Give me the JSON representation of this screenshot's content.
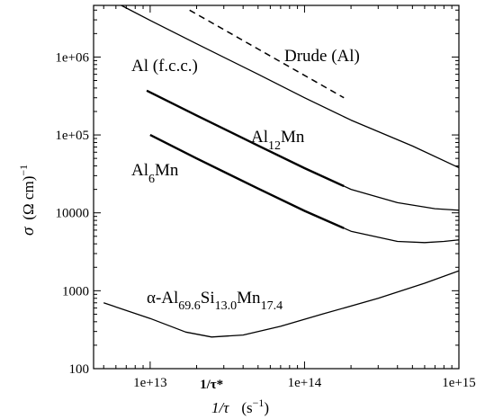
{
  "chart_data": {
    "type": "line",
    "x_scale": "log",
    "y_scale": "log",
    "xlim": [
      4300000000000.0,
      1000000000000000.0
    ],
    "ylim": [
      100,
      4600000
    ],
    "x_ticks": [
      {
        "value": 10000000000000.0,
        "label": "1e+13"
      },
      {
        "value": 100000000000000.0,
        "label": "1e+14"
      },
      {
        "value": 1000000000000000.0,
        "label": "1e+15"
      }
    ],
    "y_ticks": [
      {
        "value": 100,
        "label": "100"
      },
      {
        "value": 1000,
        "label": "1000"
      },
      {
        "value": 10000,
        "label": "10000"
      },
      {
        "value": 100000,
        "label": "1e+05"
      },
      {
        "value": 1000000,
        "label": "1e+06"
      }
    ],
    "special_tick": {
      "value": 25000000000000.0,
      "label": "1/τ*"
    },
    "xlabel": {
      "var": "1/τ",
      "unit": "(s",
      "exp": "−1",
      "close": ")"
    },
    "ylabel": {
      "var": "σ",
      "unit": "(Ω cm)",
      "exp": "−1"
    },
    "curve_labels": {
      "al_fcc": "Al (f.c.c.)",
      "drude": "Drude (Al)",
      "al12mn_base": "Al",
      "al12mn_sub": "12",
      "al12mn_tail": "Mn",
      "al6mn_base": "Al",
      "al6mn_sub": "6",
      "al6mn_tail": "Mn",
      "alpha_pre": "α-Al",
      "alpha_sub1": "69.6",
      "alpha_si": "Si",
      "alpha_sub2": "13.0",
      "alpha_mn": "Mn",
      "alpha_sub3": "17.4"
    },
    "series": [
      {
        "key": "al_fcc",
        "style": "solid",
        "width": 1.3,
        "x": [
          6500000000000.0,
          10000000000000.0,
          20000000000000.0,
          50000000000000.0,
          100000000000000.0,
          200000000000000.0,
          500000000000000.0,
          1000000000000000.0
        ],
        "y": [
          4600000,
          2950000,
          1480000,
          600000,
          300000,
          155000,
          72000,
          38000
        ]
      },
      {
        "key": "drude",
        "style": "dashed",
        "width": 1.5,
        "x": [
          18000000000000.0,
          180000000000000.0
        ],
        "y": [
          4000000,
          300000
        ]
      },
      {
        "key": "al12mn",
        "style": "solid",
        "width": 1.3,
        "thick_until": 180000000000000.0,
        "x": [
          9500000000000.0,
          20000000000000.0,
          50000000000000.0,
          100000000000000.0,
          200000000000000.0,
          400000000000000.0,
          700000000000000.0,
          1000000000000000.0
        ],
        "y": [
          370000,
          178000,
          73000,
          37500,
          20000,
          13500,
          11300,
          10800
        ]
      },
      {
        "key": "al6mn",
        "style": "solid",
        "width": 1.3,
        "thick_until": 180000000000000.0,
        "x": [
          10000000000000.0,
          20000000000000.0,
          50000000000000.0,
          100000000000000.0,
          200000000000000.0,
          400000000000000.0,
          600000000000000.0,
          800000000000000.0,
          1000000000000000.0
        ],
        "y": [
          100000,
          50000,
          20500,
          10600,
          5800,
          4300,
          4150,
          4300,
          4500
        ]
      },
      {
        "key": "alpha",
        "style": "solid",
        "width": 1.3,
        "x": [
          5000000000000.0,
          10000000000000.0,
          17000000000000.0,
          25000000000000.0,
          40000000000000.0,
          70000000000000.0,
          130000000000000.0,
          300000000000000.0,
          600000000000000.0,
          1000000000000000.0
        ],
        "y": [
          700,
          440,
          295,
          255,
          270,
          350,
          500,
          800,
          1250,
          1800
        ]
      }
    ]
  }
}
